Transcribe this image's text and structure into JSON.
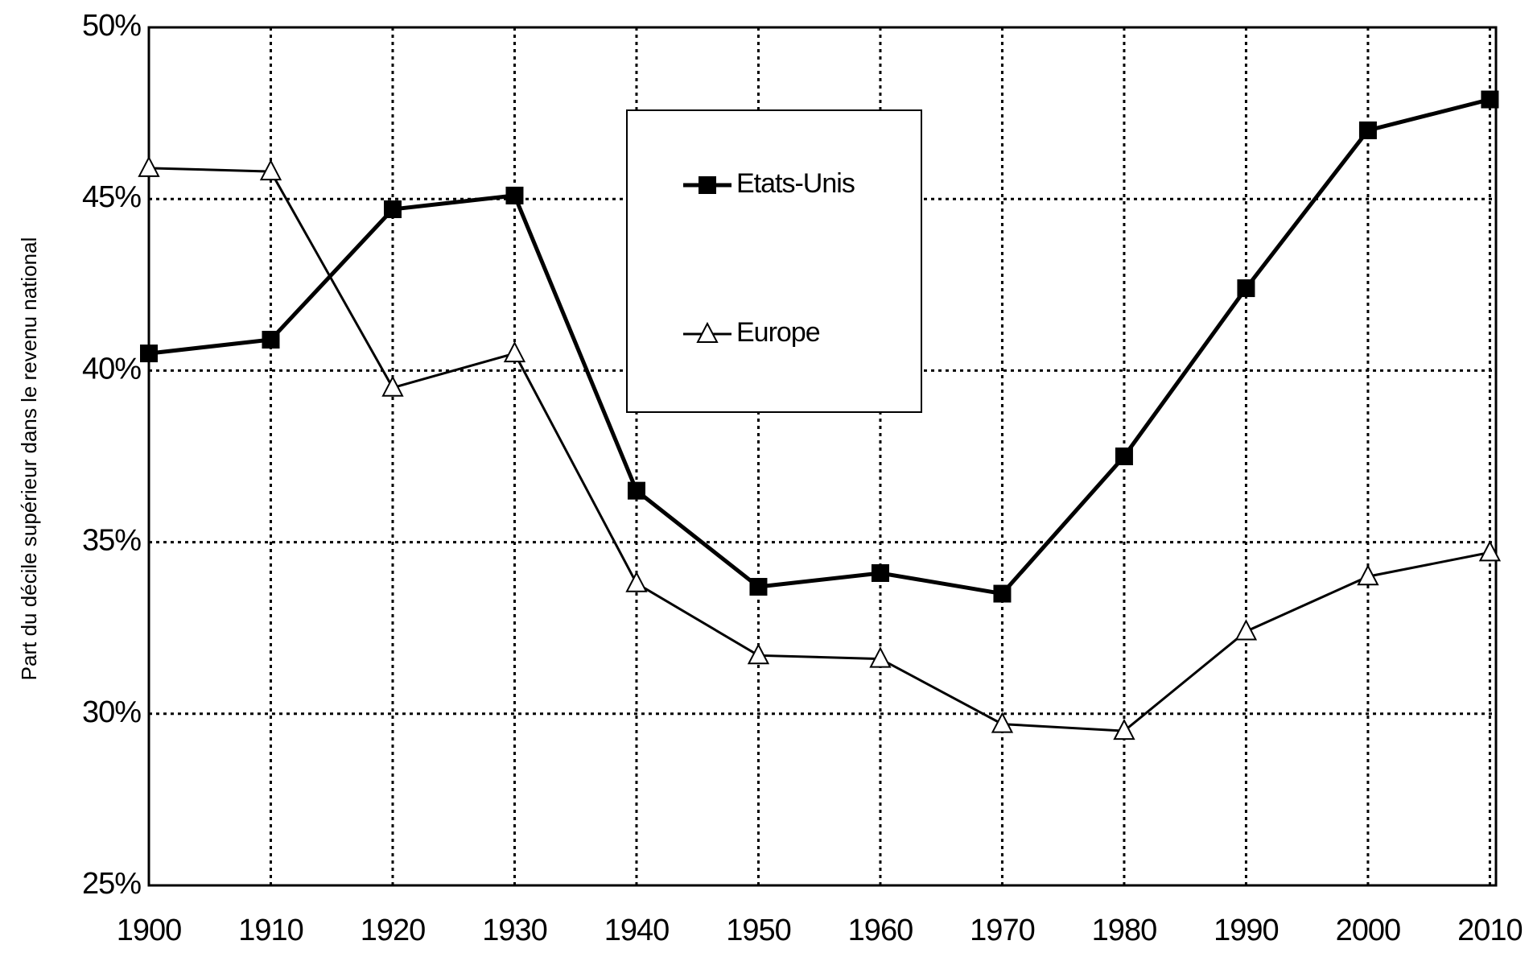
{
  "chart_data": {
    "type": "line",
    "y_label": "Part du décile supérieur dans le revenu national",
    "x": [
      1900,
      1910,
      1920,
      1930,
      1940,
      1950,
      1960,
      1970,
      1980,
      1990,
      2000,
      2010
    ],
    "xlim": [
      1900,
      2010.5
    ],
    "xticks": [
      1900,
      1910,
      1920,
      1930,
      1940,
      1950,
      1960,
      1970,
      1980,
      1990,
      2000,
      2010
    ],
    "ylim": [
      25,
      50
    ],
    "yticks": [
      {
        "value": 25,
        "label": "25%"
      },
      {
        "value": 30,
        "label": "30%"
      },
      {
        "value": 35,
        "label": "35%"
      },
      {
        "value": 40,
        "label": "40%"
      },
      {
        "value": 45,
        "label": "45%"
      },
      {
        "value": 50,
        "label": "50%"
      }
    ],
    "grid": true,
    "legend": "upper center",
    "series": [
      {
        "name": "Etats-Unis",
        "color": "#000000",
        "marker": "square",
        "values": [
          40.5,
          40.9,
          44.7,
          45.1,
          36.5,
          33.7,
          34.1,
          33.5,
          37.5,
          42.4,
          47.0,
          47.9
        ]
      },
      {
        "name": "Europe",
        "color": "#000000",
        "marker": "triangle",
        "values": [
          45.9,
          45.8,
          39.5,
          40.5,
          33.8,
          31.7,
          31.6,
          29.7,
          29.5,
          32.4,
          34.0,
          34.7
        ]
      }
    ]
  }
}
